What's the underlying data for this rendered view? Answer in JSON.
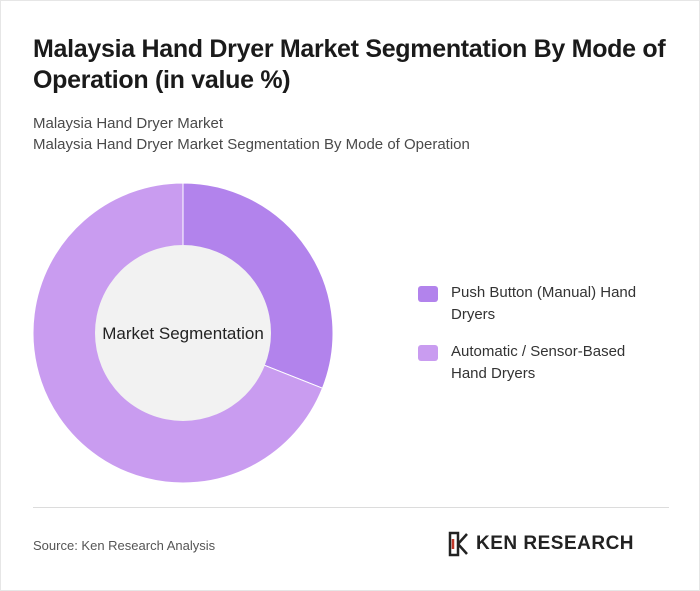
{
  "header": {
    "title": "Malaysia Hand Dryer Market Segmentation By Mode of Operation (in value %)",
    "subtitle_line1": "Malaysia Hand Dryer Market",
    "subtitle_line2": "Malaysia Hand Dryer Market Segmentation By Mode of Operation"
  },
  "chart_data": {
    "type": "pie",
    "variant": "donut",
    "center_label": "Market Segmentation",
    "categories": [
      "Push Button (Manual) Hand Dryers",
      "Automatic / Sensor-Based Hand Dryers"
    ],
    "values": [
      31,
      69
    ],
    "colors": [
      "#b283ec",
      "#c99cf0"
    ],
    "legend_position": "right"
  },
  "footer": {
    "source": "Source: Ken Research Analysis",
    "logo_text": "KEN RESEARCH"
  },
  "colors": {
    "slice_stroke": "#ffffff",
    "center_fill": "#f2f2f2",
    "divider": "#dcdcdc"
  }
}
